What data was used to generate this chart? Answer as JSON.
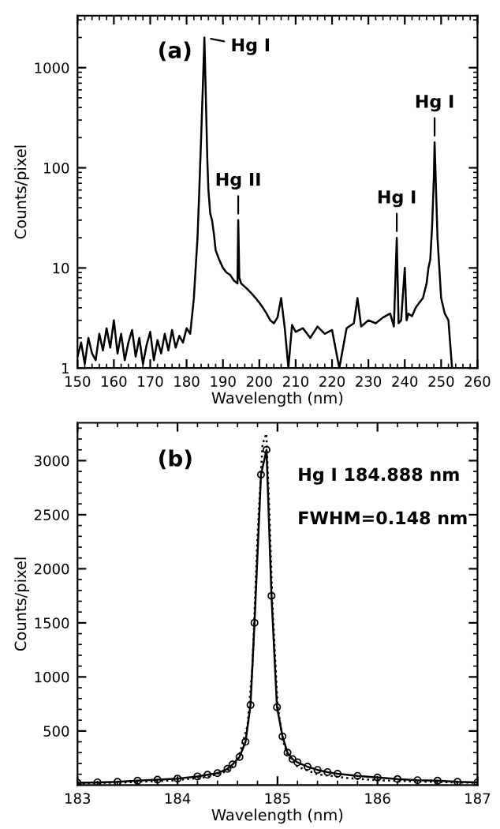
{
  "chart_data": [
    {
      "type": "line",
      "xlabel": "Wavelength (nm)",
      "ylabel": "Counts/pixel",
      "log": "y",
      "xlim": [
        150,
        260
      ],
      "xticks": [
        150,
        160,
        170,
        180,
        190,
        200,
        210,
        220,
        230,
        240,
        250,
        260
      ],
      "ylim": [
        1,
        3300
      ],
      "yticks": [
        1,
        10,
        100,
        1000
      ],
      "grid": false,
      "legend": false,
      "annotations": [
        "(a)",
        {
          "text": "Hg I",
          "x": 184.9,
          "y": 2000
        },
        {
          "text": "Hg II",
          "x": 194.2,
          "y": 30
        },
        {
          "text": "Hg I",
          "x": 237.8,
          "y": 20
        },
        {
          "text": "Hg I",
          "x": 248.2,
          "y": 180
        }
      ],
      "series": [
        {
          "color": "#000000",
          "line_style": "solid",
          "marker": "none",
          "x": [
            150,
            151,
            152,
            153,
            154,
            155,
            156,
            157,
            158,
            159,
            160,
            161,
            162,
            163,
            164,
            165,
            166,
            167,
            168,
            169,
            170,
            171,
            172,
            173,
            174,
            175,
            176,
            177,
            178,
            179,
            180,
            181,
            182,
            183,
            183.5,
            184,
            184.5,
            184.9,
            185.3,
            185.7,
            186,
            186.5,
            187,
            187.5,
            188,
            189,
            190,
            191,
            192,
            193,
            194,
            194.2,
            194.5,
            195,
            196,
            197,
            198,
            199,
            200,
            201,
            202,
            203,
            204,
            205,
            206,
            207,
            208,
            209,
            210,
            212,
            214,
            216,
            218,
            220,
            222,
            224,
            226,
            227,
            228,
            230,
            232,
            234,
            236,
            237,
            237.8,
            238.3,
            239,
            240,
            240.5,
            241,
            242,
            243,
            244,
            245,
            246,
            246.5,
            247,
            247.5,
            248,
            248.2,
            248.6,
            249,
            249.5,
            250,
            251,
            252,
            253
          ],
          "values": [
            1.3,
            1.8,
            1.1,
            2,
            1.4,
            1.2,
            2.2,
            1.5,
            2.5,
            1.6,
            3,
            1.4,
            2.2,
            1.2,
            1.8,
            2.4,
            1.3,
            2,
            1.1,
            1.7,
            2.3,
            1.2,
            1.9,
            1.4,
            2.2,
            1.5,
            2.4,
            1.6,
            2.1,
            1.8,
            2.5,
            2.2,
            5,
            20,
            60,
            200,
            700,
            2000,
            500,
            120,
            60,
            35,
            30,
            22,
            15,
            12,
            10,
            9,
            8.5,
            7.5,
            7,
            30,
            8,
            7,
            6.5,
            6,
            5.5,
            5,
            4.5,
            4,
            3.5,
            3,
            2.8,
            3.2,
            5,
            2.5,
            1,
            2.7,
            2.3,
            2.5,
            2,
            2.6,
            2.2,
            2.4,
            1,
            2.5,
            2.8,
            5,
            2.6,
            3,
            2.8,
            3.2,
            3.5,
            2.6,
            20,
            2.8,
            3,
            10,
            3,
            3.5,
            3.3,
            4,
            4.5,
            5,
            7,
            10,
            12,
            25,
            80,
            180,
            60,
            20,
            10,
            5,
            3.5,
            3,
            1
          ]
        }
      ]
    },
    {
      "type": "line",
      "xlabel": "Wavelength (nm)",
      "ylabel": "Counts/pixel",
      "xlim": [
        183,
        187
      ],
      "xticks": [
        183,
        184,
        185,
        186,
        187
      ],
      "ylim": [
        0,
        3350
      ],
      "yticks": [
        500,
        1000,
        1500,
        2000,
        2500,
        3000
      ],
      "grid": false,
      "legend": false,
      "annotations": [
        "(b)",
        "Hg I 184.888 nm",
        "FWHM=0.148 nm"
      ],
      "series": [
        {
          "color": "#000000",
          "line_style": "solid",
          "marker": "circle",
          "x": [
            183.0,
            183.2,
            183.4,
            183.6,
            183.8,
            184.0,
            184.2,
            184.3,
            184.4,
            184.5,
            184.55,
            184.62,
            184.68,
            184.73,
            184.77,
            184.835,
            184.89,
            184.94,
            184.995,
            185.05,
            185.1,
            185.15,
            185.2,
            185.3,
            185.4,
            185.5,
            185.6,
            185.8,
            186.0,
            186.2,
            186.4,
            186.6,
            186.8,
            187.0
          ],
          "values": [
            20,
            25,
            30,
            40,
            50,
            60,
            80,
            95,
            110,
            150,
            190,
            260,
            400,
            740,
            1500,
            2870,
            3100,
            1750,
            720,
            450,
            300,
            240,
            210,
            170,
            140,
            120,
            105,
            85,
            70,
            55,
            45,
            40,
            30,
            25
          ]
        },
        {
          "color": "#000000",
          "line_style": "dotted",
          "marker": "none",
          "x": [
            183,
            183.5,
            184,
            184.3,
            184.5,
            184.6,
            184.7,
            184.75,
            184.8,
            184.85,
            184.888,
            184.92,
            184.95,
            185,
            185.05,
            185.1,
            185.2,
            185.4,
            185.7,
            186,
            186.5,
            187
          ],
          "values": [
            15,
            25,
            45,
            75,
            130,
            220,
            550,
            1100,
            2300,
            3150,
            3250,
            2500,
            1650,
            750,
            420,
            280,
            170,
            100,
            65,
            45,
            30,
            20
          ]
        }
      ]
    }
  ]
}
